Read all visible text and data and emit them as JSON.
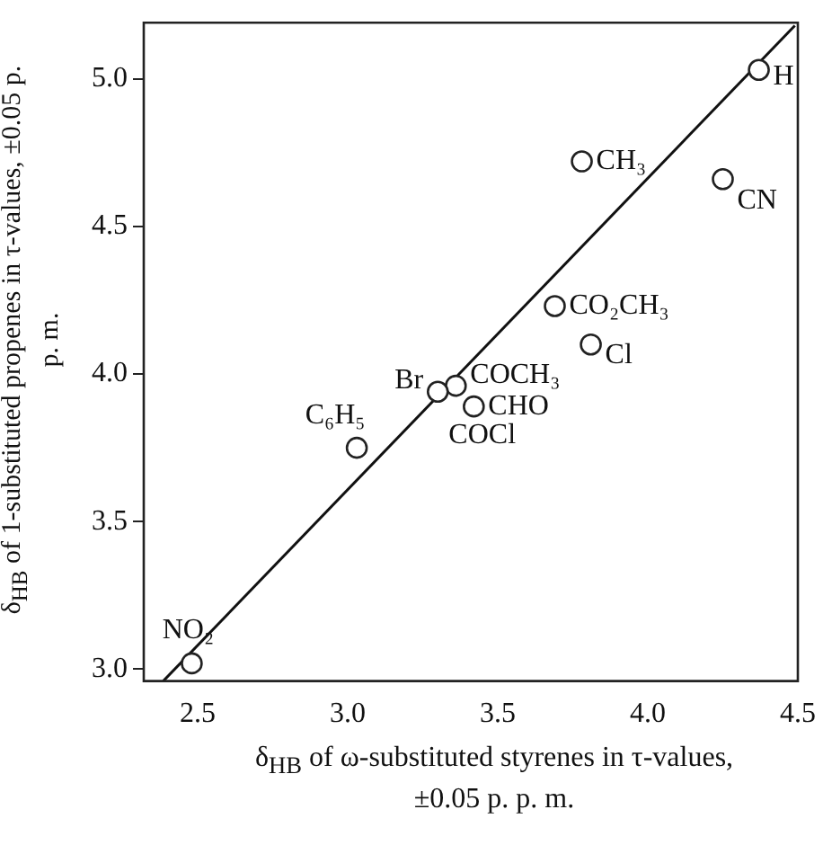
{
  "chart_data": {
    "type": "scatter",
    "xlabel": "δ$_{HB}$ of ω-substituted styrenes in τ-values, ±0.05 p. p. m.",
    "ylabel": "δ$_{HB}$ of 1-substituted propenes in τ-values, ±0.05 p. p. m.",
    "xlim": [
      2.32,
      4.5
    ],
    "ylim": [
      2.96,
      5.19
    ],
    "xticks": [
      2.5,
      {
        "value": 3,
        "label": "3.0"
      },
      3.5,
      {
        "value": 4,
        "label": "4.0"
      },
      4.5
    ],
    "yticks": [
      {
        "value": 3,
        "label": "3.0"
      },
      3.5,
      {
        "value": 4,
        "label": "4.0"
      },
      4.5,
      {
        "value": 5,
        "label": "5.0"
      }
    ],
    "grid": false,
    "legend": false,
    "marker": "circle",
    "series": [
      {
        "type": "scatter",
        "color": "#222222",
        "x": [
          4.37,
          3.78,
          4.25,
          3.69,
          3.81,
          3.36,
          3.3,
          3.42,
          3.03,
          2.48
        ],
        "values": [
          5.03,
          4.72,
          4.66,
          4.23,
          4.1,
          3.96,
          3.94,
          3.89,
          3.75,
          3.02
        ]
      },
      {
        "type": "line",
        "color": "#111111",
        "marker": "none",
        "line_style": "solid",
        "x": [
          2.385,
          4.49
        ],
        "values": [
          2.96,
          5.18
        ]
      }
    ],
    "annotations": [
      {
        "text": "H",
        "x": 4.37,
        "y": 5.03
      },
      {
        "text": "CH₃",
        "x": 3.78,
        "y": 4.72
      },
      {
        "text": "CN",
        "x": 4.25,
        "y": 4.66
      },
      {
        "text": "CO₂CH₃",
        "x": 3.69,
        "y": 4.23
      },
      {
        "text": "Cl",
        "x": 3.81,
        "y": 4.1
      },
      {
        "text": "COCH₃",
        "x": 3.36,
        "y": 3.96
      },
      {
        "text": "Br",
        "x": 3.3,
        "y": 3.94
      },
      {
        "text": "CHO",
        "x": 3.42,
        "y": 3.89
      },
      {
        "text": "COCl",
        "x": 3.42,
        "y": 3.89
      },
      {
        "text": "C₆H₅",
        "x": 3.03,
        "y": 3.75
      },
      {
        "text": "NO₂",
        "x": 2.48,
        "y": 3.02
      }
    ]
  }
}
